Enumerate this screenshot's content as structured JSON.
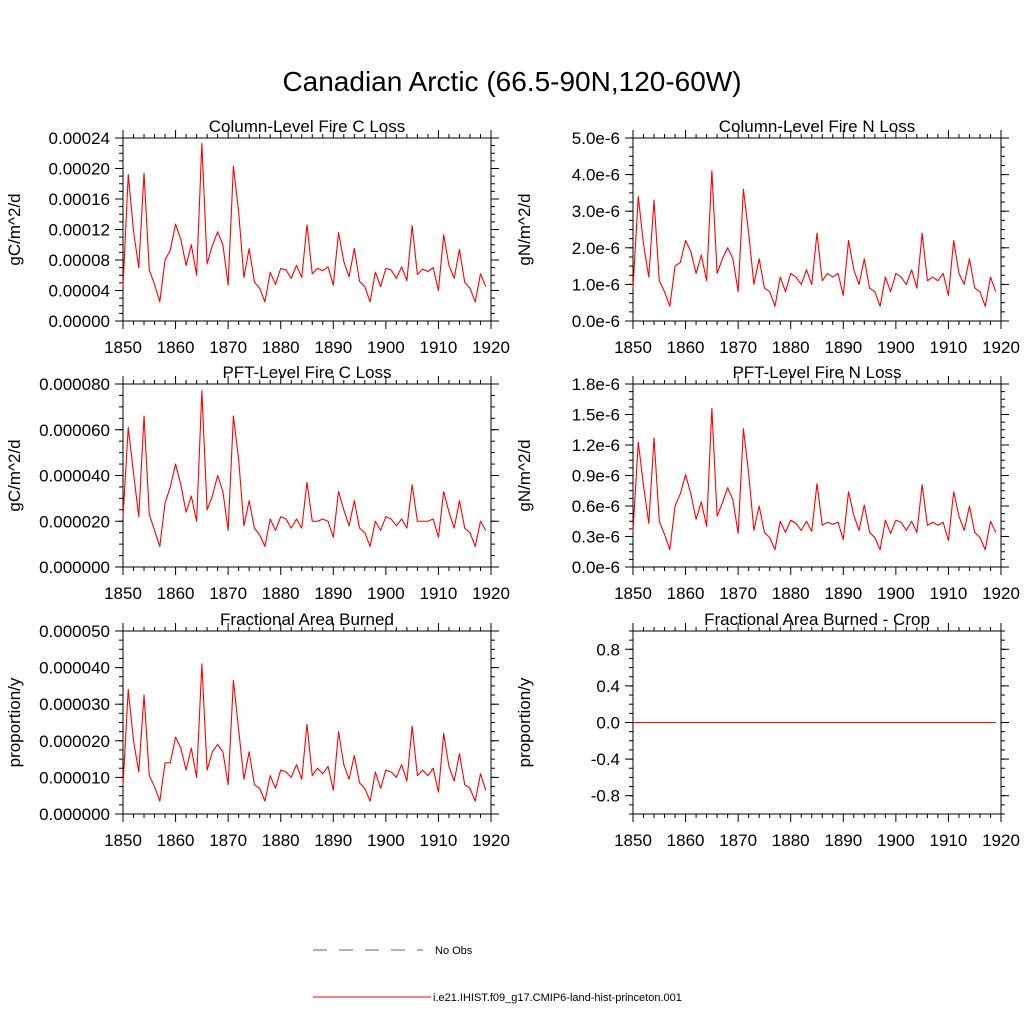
{
  "title": "Canadian Arctic (66.5-90N,120-60W)",
  "x_tick_labels": [
    "1850",
    "1860",
    "1870",
    "1880",
    "1890",
    "1900",
    "1910",
    "1920"
  ],
  "series_color": "#ff0000",
  "legend": {
    "placement": "bottom-center",
    "entries": [
      {
        "label": "No Obs",
        "style": "dashed",
        "color": "#5a5adc"
      },
      {
        "label": "i.e21.IHIST.f09_g17.CMIP6-land-hist-princeton.001",
        "style": "solid",
        "color": "#ff0000"
      }
    ]
  },
  "chart_data": [
    {
      "type": "line",
      "title": "Column-Level Fire C Loss",
      "ylabel": "gC/m^2/d",
      "xlim": [
        1850,
        1920
      ],
      "ylim": [
        0,
        0.00024
      ],
      "yticks": [
        0,
        4e-05,
        8e-05,
        0.00012,
        0.00016,
        0.0002,
        0.00024
      ],
      "ytick_labels": [
        "0.00000",
        "0.00004",
        "0.00008",
        "0.00012",
        "0.00016",
        "0.00020",
        "0.00024"
      ],
      "series": [
        {
          "x_start": 1850,
          "x_step": 1,
          "values": [
            4.5e-05,
            0.000192,
            0.000118,
            7e-05,
            0.000194,
            6.7e-05,
            4.8e-05,
            2.5e-05,
            8e-05,
            9.3e-05,
            0.000127,
            0.000107,
            7.3e-05,
            0.0001,
            6e-05,
            0.000233,
            7.5e-05,
            9.9e-05,
            0.000117,
            0.0001,
            4.7e-05,
            0.000203,
            0.000143,
            5.7e-05,
            9.5e-05,
            5.1e-05,
            4.3e-05,
            2.5e-05,
            6.4e-05,
            4.8e-05,
            6.9e-05,
            6.7e-05,
            5.6e-05,
            7.3e-05,
            5.7e-05,
            0.000126,
            6.2e-05,
            6.9e-05,
            6.6e-05,
            7.1e-05,
            4.7e-05,
            0.000116,
            7.8e-05,
            5.8e-05,
            9.5e-05,
            5.2e-05,
            4.5e-05,
            2.5e-05,
            6.4e-05,
            4.5e-05,
            6.9e-05,
            6.7e-05,
            5.6e-05,
            7.1e-05,
            5.3e-05,
            0.000125,
            6.1e-05,
            6.8e-05,
            6.5e-05,
            7e-05,
            4e-05,
            0.000113,
            7.3e-05,
            5.6e-05,
            9.4e-05,
            5.1e-05,
            4.3e-05,
            2.5e-05,
            6.2e-05,
            4.5e-05
          ]
        }
      ]
    },
    {
      "type": "line",
      "title": "Column-Level Fire N Loss",
      "ylabel": "gN/m^2/d",
      "xlim": [
        1850,
        1920
      ],
      "ylim": [
        0,
        5e-06
      ],
      "yticks": [
        0,
        1e-06,
        2e-06,
        3e-06,
        4e-06,
        5e-06
      ],
      "ytick_labels": [
        "0.0e-6",
        "1.0e-6",
        "2.0e-6",
        "3.0e-6",
        "4.0e-6",
        "5.0e-6"
      ],
      "series": [
        {
          "x_start": 1850,
          "x_step": 1,
          "values": [
            9e-07,
            3.4e-06,
            2.1e-06,
            1.2e-06,
            3.3e-06,
            1.1e-06,
            8e-07,
            4e-07,
            1.5e-06,
            1.6e-06,
            2.2e-06,
            1.9e-06,
            1.3e-06,
            1.8e-06,
            1.1e-06,
            4.1e-06,
            1.3e-06,
            1.7e-06,
            2e-06,
            1.7e-06,
            8e-07,
            3.6e-06,
            2.4e-06,
            1e-06,
            1.7e-06,
            9e-07,
            8e-07,
            4e-07,
            1.2e-06,
            8e-07,
            1.3e-06,
            1.2e-06,
            1e-06,
            1.4e-06,
            1e-06,
            2.4e-06,
            1.1e-06,
            1.3e-06,
            1.2e-06,
            1.3e-06,
            7e-07,
            2.2e-06,
            1.4e-06,
            1e-06,
            1.7e-06,
            9e-07,
            8e-07,
            4e-07,
            1.2e-06,
            8e-07,
            1.3e-06,
            1.2e-06,
            1e-06,
            1.4e-06,
            9e-07,
            2.4e-06,
            1.1e-06,
            1.2e-06,
            1.1e-06,
            1.3e-06,
            7e-07,
            2.2e-06,
            1.3e-06,
            1e-06,
            1.7e-06,
            9e-07,
            8e-07,
            4e-07,
            1.2e-06,
            8e-07
          ]
        }
      ]
    },
    {
      "type": "line",
      "title": "PFT-Level Fire C Loss",
      "ylabel": "gC/m^2/d",
      "xlim": [
        1850,
        1920
      ],
      "ylim": [
        0,
        8e-05
      ],
      "yticks": [
        0,
        2e-05,
        4e-05,
        6e-05,
        8e-05
      ],
      "ytick_labels": [
        "0.000000",
        "0.000020",
        "0.000040",
        "0.000060",
        "0.000080"
      ],
      "series": [
        {
          "x_start": 1850,
          "x_step": 1,
          "values": [
            2.2e-05,
            6.1e-05,
            4.1e-05,
            2.2e-05,
            6.6e-05,
            2.3e-05,
            1.6e-05,
            9e-06,
            2.8e-05,
            3.5e-05,
            4.5e-05,
            3.6e-05,
            2.4e-05,
            3.1e-05,
            2e-05,
            7.7e-05,
            2.5e-05,
            3.1e-05,
            4e-05,
            3.3e-05,
            1.6e-05,
            6.6e-05,
            4.7e-05,
            1.8e-05,
            2.9e-05,
            1.7e-05,
            1.4e-05,
            9e-06,
            2.1e-05,
            1.6e-05,
            2.2e-05,
            2.1e-05,
            1.7e-05,
            2.1e-05,
            1.7e-05,
            3.7e-05,
            2e-05,
            2e-05,
            2.1e-05,
            2e-05,
            1.3e-05,
            3.3e-05,
            2.5e-05,
            1.8e-05,
            2.9e-05,
            1.7e-05,
            1.5e-05,
            9e-06,
            2e-05,
            1.6e-05,
            2.2e-05,
            2.1e-05,
            1.8e-05,
            2.1e-05,
            1.7e-05,
            3.6e-05,
            2e-05,
            2e-05,
            2e-05,
            2.1e-05,
            1.3e-05,
            3.3e-05,
            2.4e-05,
            1.7e-05,
            2.9e-05,
            1.7e-05,
            1.5e-05,
            9e-06,
            2e-05,
            1.6e-05
          ]
        }
      ]
    },
    {
      "type": "line",
      "title": "PFT-Level Fire N Loss",
      "ylabel": "gN/m^2/d",
      "xlim": [
        1850,
        1920
      ],
      "ylim": [
        0,
        1.8e-06
      ],
      "yticks": [
        0,
        3e-07,
        6e-07,
        9e-07,
        1.2e-06,
        1.5e-06,
        1.8e-06
      ],
      "ytick_labels": [
        "0.0e-6",
        "0.3e-6",
        "0.6e-6",
        "0.9e-6",
        "1.2e-6",
        "1.5e-6",
        "1.8e-6"
      ],
      "series": [
        {
          "x_start": 1850,
          "x_step": 1,
          "values": [
            3.5e-07,
            1.23e-06,
            8e-07,
            4.3e-07,
            1.27e-06,
            4.5e-07,
            3.2e-07,
            1.7e-07,
            6e-07,
            7.2e-07,
            9.1e-07,
            7.2e-07,
            4.7e-07,
            6.4e-07,
            4e-07,
            1.56e-06,
            5e-07,
            6.3e-07,
            7.8e-07,
            6.6e-07,
            3.3e-07,
            1.36e-06,
            9.2e-07,
            3.6e-07,
            6e-07,
            3.4e-07,
            2.9e-07,
            1.7e-07,
            4.5e-07,
            3.4e-07,
            4.6e-07,
            4.3e-07,
            3.6e-07,
            4.5e-07,
            3.5e-07,
            8.2e-07,
            4.1e-07,
            4.4e-07,
            4.2e-07,
            4.4e-07,
            2.7e-07,
            7.4e-07,
            5.1e-07,
            3.6e-07,
            6.1e-07,
            3.4e-07,
            2.9e-07,
            1.7e-07,
            4.6e-07,
            3.3e-07,
            4.6e-07,
            4.4e-07,
            3.6e-07,
            4.5e-07,
            3.4e-07,
            8.1e-07,
            4.1e-07,
            4.4e-07,
            4.1e-07,
            4.4e-07,
            2.6e-07,
            7.4e-07,
            5e-07,
            3.6e-07,
            6e-07,
            3.4e-07,
            2.9e-07,
            1.7e-07,
            4.5e-07,
            3.4e-07
          ]
        }
      ]
    },
    {
      "type": "line",
      "title": "Fractional Area Burned",
      "ylabel": "proportion/y",
      "xlim": [
        1850,
        1920
      ],
      "ylim": [
        0,
        5e-05
      ],
      "yticks": [
        0,
        1e-05,
        2e-05,
        3e-05,
        4e-05,
        5e-05
      ],
      "ytick_labels": [
        "0.000000",
        "0.000010",
        "0.000020",
        "0.000030",
        "0.000040",
        "0.000050"
      ],
      "series": [
        {
          "x_start": 1850,
          "x_step": 1,
          "values": [
            8e-06,
            3.4e-05,
            2e-05,
            1.15e-05,
            3.25e-05,
            1.05e-05,
            7.5e-06,
            3.5e-06,
            1.4e-05,
            1.4e-05,
            2.1e-05,
            1.8e-05,
            1.2e-05,
            1.8e-05,
            1e-05,
            4.1e-05,
            1.2e-05,
            1.7e-05,
            1.9e-05,
            1.7e-05,
            8e-06,
            3.65e-05,
            2.3e-05,
            9.5e-06,
            1.7e-05,
            8e-06,
            7e-06,
            3.5e-06,
            1.05e-05,
            7e-06,
            1.2e-05,
            1.15e-05,
            1e-05,
            1.35e-05,
            9.5e-06,
            2.45e-05,
            1.05e-05,
            1.25e-05,
            1.1e-05,
            1.3e-05,
            6.5e-06,
            2.25e-05,
            1.35e-05,
            9.5e-06,
            1.6e-05,
            8.5e-06,
            7e-06,
            3.5e-06,
            1.15e-05,
            7e-06,
            1.2e-05,
            1.15e-05,
            1e-05,
            1.35e-05,
            9e-06,
            2.4e-05,
            1.05e-05,
            1.2e-05,
            1.05e-05,
            1.25e-05,
            6e-06,
            2.2e-05,
            1.3e-05,
            9e-06,
            1.65e-05,
            8e-06,
            7e-06,
            3.5e-06,
            1.1e-05,
            6.5e-06
          ]
        }
      ]
    },
    {
      "type": "line",
      "title": "Fractional Area Burned - Crop",
      "ylabel": "proportion/y",
      "xlim": [
        1850,
        1920
      ],
      "ylim": [
        -1,
        1
      ],
      "yticks": [
        -0.8,
        -0.4,
        0,
        0.4,
        0.8
      ],
      "ytick_labels": [
        "-0.8",
        "-0.4",
        "0.0",
        "0.4",
        "0.8"
      ],
      "series": [
        {
          "x_start": 1850,
          "x_step": 1,
          "values": [
            0,
            0,
            0,
            0,
            0,
            0,
            0,
            0,
            0,
            0,
            0,
            0,
            0,
            0,
            0,
            0,
            0,
            0,
            0,
            0,
            0,
            0,
            0,
            0,
            0,
            0,
            0,
            0,
            0,
            0,
            0,
            0,
            0,
            0,
            0,
            0,
            0,
            0,
            0,
            0,
            0,
            0,
            0,
            0,
            0,
            0,
            0,
            0,
            0,
            0,
            0,
            0,
            0,
            0,
            0,
            0,
            0,
            0,
            0,
            0,
            0,
            0,
            0,
            0,
            0,
            0,
            0,
            0,
            0,
            0
          ]
        }
      ]
    }
  ]
}
